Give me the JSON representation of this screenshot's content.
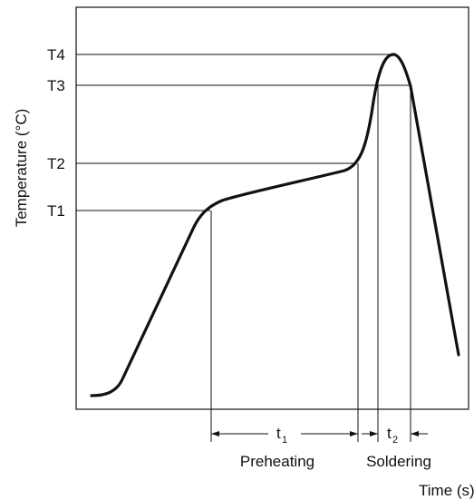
{
  "chart_data": {
    "type": "line",
    "title": "",
    "ylabel": "Temperature (°C)",
    "xlabel": "Time (s)",
    "y_ticks": [
      "T1",
      "T2",
      "T3",
      "T4"
    ],
    "intervals": [
      {
        "symbol": "t",
        "subscript": "1",
        "label": "Preheating"
      },
      {
        "symbol": "t",
        "subscript": "2",
        "label": "Soldering"
      }
    ],
    "grid": false,
    "legend": "none"
  }
}
